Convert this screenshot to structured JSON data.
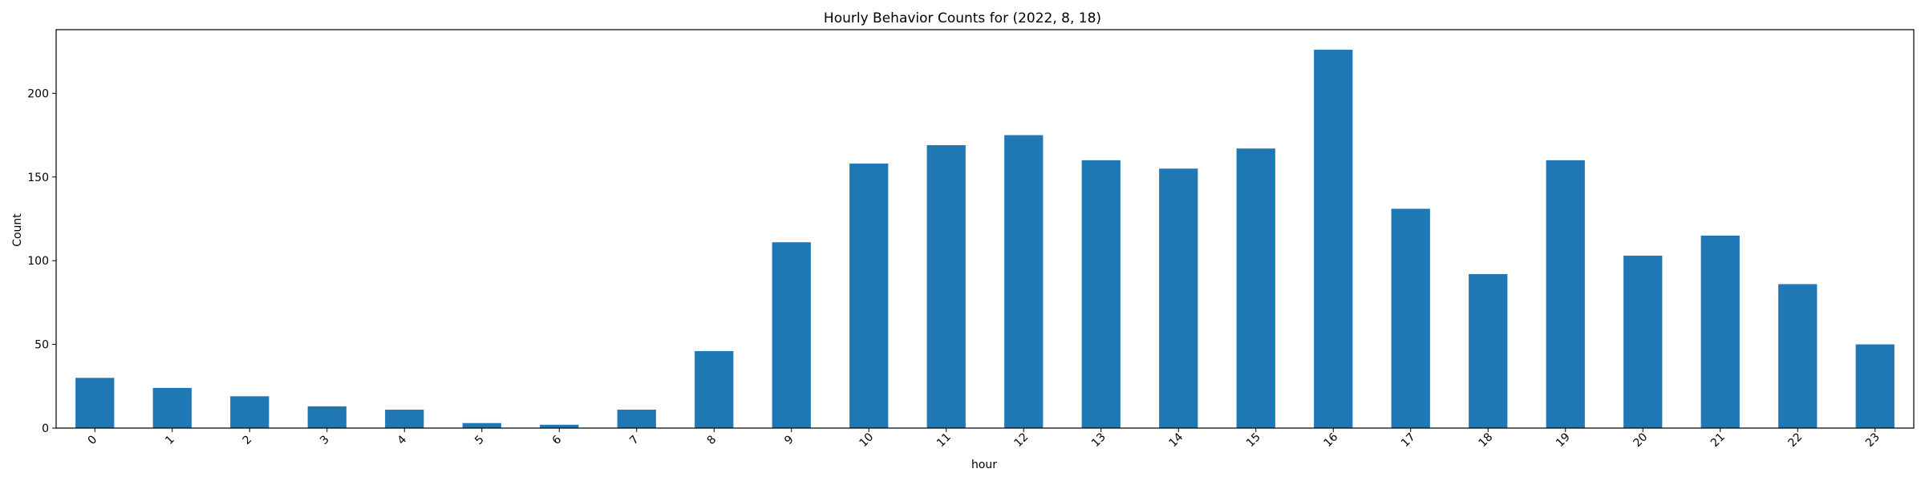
{
  "chart_data": {
    "type": "bar",
    "title": "Hourly Behavior Counts for (2022, 8, 18)",
    "xlabel": "hour",
    "ylabel": "Count",
    "categories": [
      "0",
      "1",
      "2",
      "3",
      "4",
      "5",
      "6",
      "7",
      "8",
      "9",
      "10",
      "11",
      "12",
      "13",
      "14",
      "15",
      "16",
      "17",
      "18",
      "19",
      "20",
      "21",
      "22",
      "23"
    ],
    "values": [
      30,
      24,
      19,
      13,
      11,
      3,
      2,
      11,
      46,
      111,
      158,
      169,
      175,
      160,
      155,
      167,
      226,
      131,
      92,
      160,
      103,
      115,
      86,
      50
    ],
    "ylim": [
      0,
      238
    ],
    "yticks": [
      "0",
      "50",
      "100",
      "150",
      "200"
    ],
    "bar_color": "#1f77b4",
    "grid": false,
    "xtick_rotation": 45
  }
}
